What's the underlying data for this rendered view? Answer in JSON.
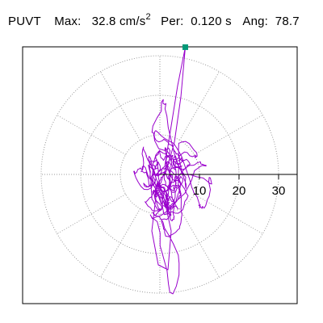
{
  "header": {
    "name": "PUVT",
    "max_label": "Max:",
    "max_value": "32.8",
    "max_unit": "cm/s",
    "max_unit_power": "2",
    "per_label": "Per:",
    "per_value": "0.120 s",
    "ang_label": "Ang:",
    "ang_value": "78.7"
  },
  "chart_data": {
    "type": "polar",
    "title": "",
    "radial_ticks": [
      10,
      20,
      30
    ],
    "radial_tick_labels": [
      "10",
      "20",
      "30"
    ],
    "rmax": 35,
    "angular_gridlines_deg": [
      0,
      30,
      60,
      90,
      120,
      150,
      180,
      210,
      240,
      270,
      300,
      330
    ],
    "grid": true,
    "grid_style": "dotted",
    "series": [
      {
        "color": "#9900cc",
        "max_point": {
          "r": 32.8,
          "angle_deg": 78.7
        },
        "max_marker_color": "#009977"
      }
    ]
  },
  "colors": {
    "trace": "#9900cc",
    "grid": "#999999",
    "axis": "#000000",
    "marker": "#009977"
  }
}
